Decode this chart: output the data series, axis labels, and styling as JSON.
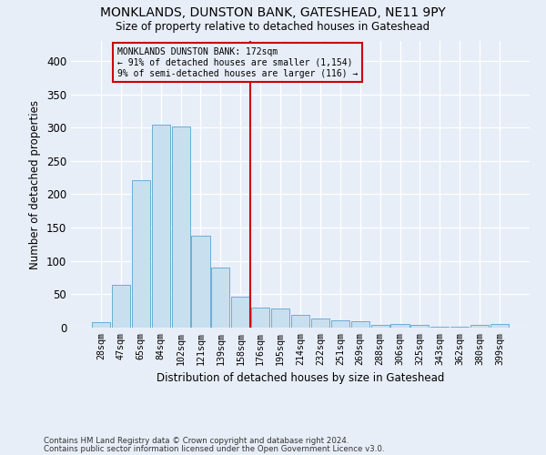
{
  "title": "MONKLANDS, DUNSTON BANK, GATESHEAD, NE11 9PY",
  "subtitle": "Size of property relative to detached houses in Gateshead",
  "xlabel": "Distribution of detached houses by size in Gateshead",
  "ylabel": "Number of detached properties",
  "footnote1": "Contains HM Land Registry data © Crown copyright and database right 2024.",
  "footnote2": "Contains public sector information licensed under the Open Government Licence v3.0.",
  "bar_labels": [
    "28sqm",
    "47sqm",
    "65sqm",
    "84sqm",
    "102sqm",
    "121sqm",
    "139sqm",
    "158sqm",
    "176sqm",
    "195sqm",
    "214sqm",
    "232sqm",
    "251sqm",
    "269sqm",
    "288sqm",
    "306sqm",
    "325sqm",
    "343sqm",
    "362sqm",
    "380sqm",
    "399sqm"
  ],
  "bar_values": [
    8,
    64,
    221,
    305,
    302,
    138,
    90,
    46,
    30,
    29,
    19,
    14,
    11,
    10,
    4,
    5,
    4,
    2,
    1,
    4,
    5
  ],
  "bar_color": "#c8dff0",
  "bar_edgecolor": "#6aaed6",
  "background_color": "#e8eef8",
  "vline_color": "#cc0000",
  "annotation_text": "MONKLANDS DUNSTON BANK: 172sqm\n← 91% of detached houses are smaller (1,154)\n9% of semi-detached houses are larger (116) →",
  "annotation_box_edgecolor": "#cc0000",
  "ylim": [
    0,
    430
  ],
  "yticks": [
    0,
    50,
    100,
    150,
    200,
    250,
    300,
    350,
    400
  ]
}
